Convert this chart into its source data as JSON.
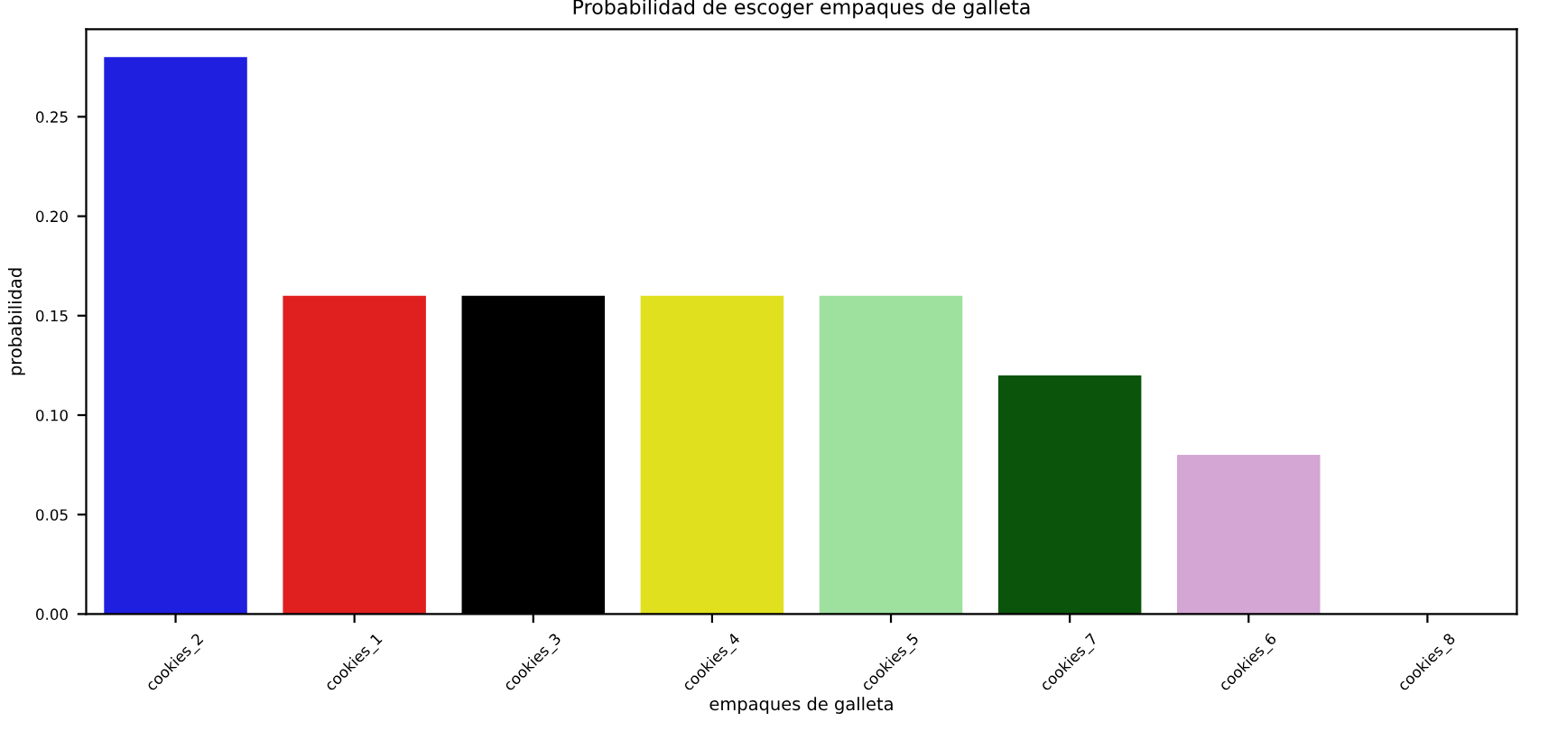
{
  "chart_data": {
    "type": "bar",
    "title": "Probabilidad de escoger empaques de galleta",
    "xlabel": "empaques de galleta",
    "ylabel": "probabilidad",
    "categories": [
      "cookies_2",
      "cookies_1",
      "cookies_3",
      "cookies_4",
      "cookies_5",
      "cookies_7",
      "cookies_6",
      "cookies_8"
    ],
    "values": [
      0.28,
      0.16,
      0.16,
      0.16,
      0.16,
      0.12,
      0.08,
      0.0
    ],
    "colors": [
      "#1f1fe0",
      "#e01f1f",
      "#000000",
      "#e0e01f",
      "#9ee09e",
      "#0b540b",
      "#d4a6d4",
      "#8a2be2"
    ],
    "ylim": [
      0,
      0.294
    ],
    "yticks": [
      {
        "value": 0,
        "label": "0.00"
      },
      {
        "value": 0.05,
        "label": "0.05"
      },
      {
        "value": 0.1,
        "label": "0.10"
      },
      {
        "value": 0.15,
        "label": "0.15"
      },
      {
        "value": 0.2,
        "label": "0.20"
      },
      {
        "value": 0.25,
        "label": "0.25"
      }
    ],
    "grid": false,
    "legend": false
  }
}
